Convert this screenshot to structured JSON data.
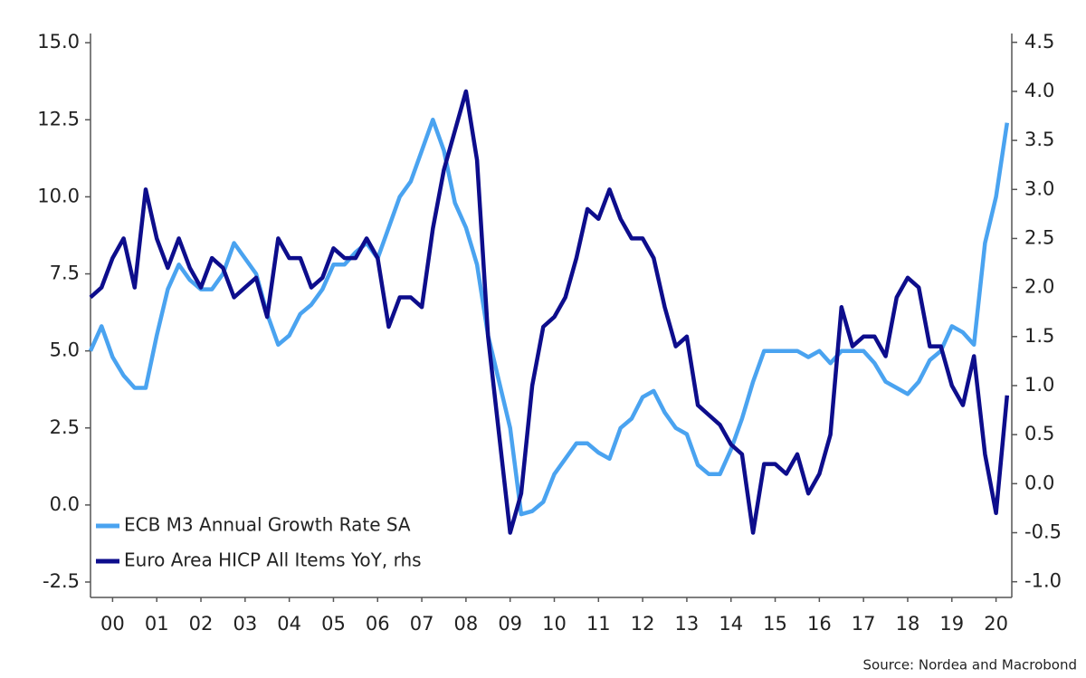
{
  "chart_data": {
    "type": "line",
    "source": "Source: Nordea and Macrobond",
    "x": [
      2000,
      2000.25,
      2000.5,
      2000.75,
      2001,
      2001.25,
      2001.5,
      2001.75,
      2002,
      2002.25,
      2002.5,
      2002.75,
      2003,
      2003.25,
      2003.5,
      2003.75,
      2004,
      2004.25,
      2004.5,
      2004.75,
      2005,
      2005.25,
      2005.5,
      2005.75,
      2006,
      2006.25,
      2006.5,
      2006.75,
      2007,
      2007.25,
      2007.5,
      2007.75,
      2008,
      2008.25,
      2008.5,
      2008.75,
      2009,
      2009.25,
      2009.5,
      2009.75,
      2010,
      2010.25,
      2010.5,
      2010.75,
      2011,
      2011.25,
      2011.5,
      2011.75,
      2012,
      2012.25,
      2012.5,
      2012.75,
      2013,
      2013.25,
      2013.5,
      2013.75,
      2014,
      2014.25,
      2014.5,
      2014.75,
      2015,
      2015.25,
      2015.5,
      2015.75,
      2016,
      2016.25,
      2016.5,
      2016.75,
      2017,
      2017.25,
      2017.5,
      2017.75,
      2018,
      2018.25,
      2018.5,
      2018.75,
      2019,
      2019.25,
      2019.5,
      2019.75,
      2020,
      2020.25,
      2020.5,
      2020.75
    ],
    "series": [
      {
        "name": "ECB M3 Annual Growth Rate SA",
        "color": "#4aa3f0",
        "axis": "y",
        "values": [
          5.0,
          5.8,
          4.8,
          4.2,
          3.8,
          3.8,
          5.5,
          7.0,
          7.8,
          7.3,
          7.0,
          7.0,
          7.5,
          8.5,
          8.0,
          7.5,
          6.2,
          5.2,
          5.5,
          6.2,
          6.5,
          7.0,
          7.8,
          7.8,
          8.2,
          8.5,
          8.0,
          9.0,
          10.0,
          10.5,
          11.5,
          12.5,
          11.5,
          9.8,
          9.0,
          7.8,
          5.5,
          4.0,
          2.5,
          -0.3,
          -0.2,
          0.1,
          1.0,
          1.5,
          2.0,
          2.0,
          1.7,
          1.5,
          2.5,
          2.8,
          3.5,
          3.7,
          3.0,
          2.5,
          2.3,
          1.3,
          1.0,
          1.0,
          1.8,
          2.8,
          4.0,
          5.0,
          5.0,
          5.0,
          5.0,
          4.8,
          5.0,
          4.6,
          5.0,
          5.0,
          5.0,
          4.6,
          4.0,
          3.8,
          3.6,
          4.0,
          4.7,
          5.0,
          5.8,
          5.6,
          5.2,
          8.5,
          10.0,
          12.4
        ]
      },
      {
        "name": "Euro Area HICP All Items YoY, rhs",
        "color": "#0d0d8c",
        "axis": "y2",
        "values": [
          1.9,
          2.0,
          2.3,
          2.5,
          2.0,
          3.0,
          2.5,
          2.2,
          2.5,
          2.2,
          2.0,
          2.3,
          2.2,
          1.9,
          2.0,
          2.1,
          1.7,
          2.5,
          2.3,
          2.3,
          2.0,
          2.1,
          2.4,
          2.3,
          2.3,
          2.5,
          2.3,
          1.6,
          1.9,
          1.9,
          1.8,
          2.6,
          3.2,
          3.6,
          4.0,
          3.3,
          1.5,
          0.5,
          -0.5,
          -0.1,
          1.0,
          1.6,
          1.7,
          1.9,
          2.3,
          2.8,
          2.7,
          3.0,
          2.7,
          2.5,
          2.5,
          2.3,
          1.8,
          1.4,
          1.5,
          0.8,
          0.7,
          0.6,
          0.4,
          0.3,
          -0.5,
          0.2,
          0.2,
          0.1,
          0.3,
          -0.1,
          0.1,
          0.5,
          1.8,
          1.4,
          1.5,
          1.5,
          1.3,
          1.9,
          2.1,
          2.0,
          1.4,
          1.4,
          1.0,
          0.8,
          1.3,
          0.3,
          -0.3,
          0.9
        ]
      }
    ],
    "xlim": [
      2000,
      2021
    ],
    "xticks": [
      {
        "value": 2000.5,
        "label": "00"
      },
      {
        "value": 2001.5,
        "label": "01"
      },
      {
        "value": 2002.5,
        "label": "02"
      },
      {
        "value": 2003.5,
        "label": "03"
      },
      {
        "value": 2004.5,
        "label": "04"
      },
      {
        "value": 2005.5,
        "label": "05"
      },
      {
        "value": 2006.5,
        "label": "06"
      },
      {
        "value": 2007.5,
        "label": "07"
      },
      {
        "value": 2008.5,
        "label": "08"
      },
      {
        "value": 2009.5,
        "label": "09"
      },
      {
        "value": 2010.5,
        "label": "10"
      },
      {
        "value": 2011.5,
        "label": "11"
      },
      {
        "value": 2012.5,
        "label": "12"
      },
      {
        "value": 2013.5,
        "label": "13"
      },
      {
        "value": 2014.5,
        "label": "14"
      },
      {
        "value": 2015.5,
        "label": "15"
      },
      {
        "value": 2016.5,
        "label": "16"
      },
      {
        "value": 2017.5,
        "label": "17"
      },
      {
        "value": 2018.5,
        "label": "18"
      },
      {
        "value": 2019.5,
        "label": "19"
      },
      {
        "value": 2020.5,
        "label": "20"
      }
    ],
    "ylim": [
      -3.0,
      15.3
    ],
    "yticks": [
      {
        "value": 15,
        "label": "15.0"
      },
      12.5,
      {
        "value": 10,
        "label": "10.0"
      },
      7.5,
      {
        "value": 5,
        "label": "5.0"
      },
      2.5,
      {
        "value": 0,
        "label": "0.0"
      },
      -2.5
    ],
    "y2lim": [
      -1.16,
      4.59
    ],
    "y2ticks": [
      4.5,
      {
        "value": 4,
        "label": "4.0"
      },
      3.5,
      {
        "value": 3,
        "label": "3.0"
      },
      2.5,
      {
        "value": 2,
        "label": "2.0"
      },
      1.5,
      {
        "value": 1,
        "label": "1.0"
      },
      0.5,
      {
        "value": 0,
        "label": "0.0"
      },
      -0.5,
      {
        "value": -1,
        "label": "-1.0"
      }
    ],
    "legend": "lower left",
    "grid": false
  }
}
